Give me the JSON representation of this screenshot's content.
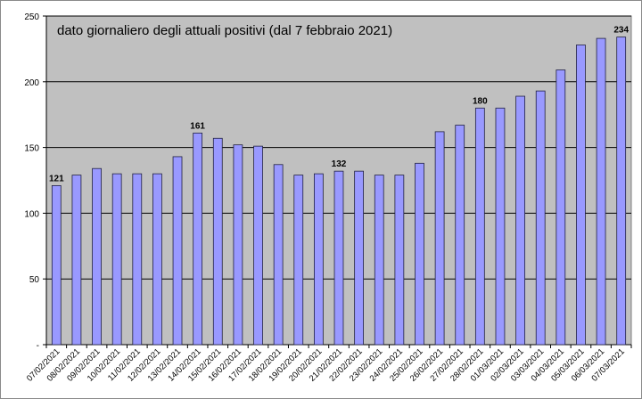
{
  "chart_data": {
    "type": "bar",
    "title": "dato giornaliero degli attuali positivi (dal 7 febbraio 2021)",
    "xlabel": "",
    "ylabel": "",
    "ylim": [
      0,
      250
    ],
    "yticks": [
      "-",
      "50",
      "100",
      "150",
      "200",
      "250"
    ],
    "grid": true,
    "legend": "none",
    "colors": {
      "plot_background": "#c0c0c0",
      "bar_fill": "#9999ff",
      "bar_stroke": "#202040",
      "gridline": "#000000"
    },
    "categories": [
      "07/02/2021",
      "08/02/2021",
      "09/02/2021",
      "10/02/2021",
      "11/02/2021",
      "12/02/2021",
      "13/02/2021",
      "14/02/2021",
      "15/02/2021",
      "16/02/2021",
      "17/02/2021",
      "18/02/2021",
      "19/02/2021",
      "20/02/2021",
      "21/02/2021",
      "22/02/2021",
      "23/02/2021",
      "24/02/2021",
      "25/02/2021",
      "26/02/2021",
      "27/02/2021",
      "28/02/2021",
      "01/03/2021",
      "02/03/2021",
      "03/03/2021",
      "04/03/2021",
      "05/03/2021",
      "06/03/2021",
      "07/03/2021"
    ],
    "values": [
      121,
      129,
      134,
      130,
      130,
      130,
      143,
      161,
      157,
      152,
      151,
      137,
      129,
      130,
      132,
      132,
      129,
      129,
      138,
      162,
      167,
      180,
      180,
      189,
      193,
      209,
      228,
      233,
      234
    ],
    "data_labels": [
      {
        "index": 0,
        "text": "121"
      },
      {
        "index": 7,
        "text": "161"
      },
      {
        "index": 14,
        "text": "132"
      },
      {
        "index": 21,
        "text": "180"
      },
      {
        "index": 28,
        "text": "234"
      }
    ]
  }
}
